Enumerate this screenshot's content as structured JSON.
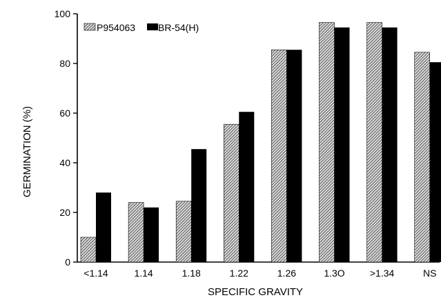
{
  "chart_data": {
    "type": "bar",
    "title": "",
    "xlabel": "SPECIFIC GRAVITY",
    "ylabel": "GERMINATION (%)",
    "ylim": [
      0,
      100
    ],
    "yticks": [
      0,
      20,
      40,
      60,
      80,
      100
    ],
    "categories": [
      "<1.14",
      "1.14",
      "1.18",
      "1.22",
      "1.26",
      "1.3O",
      ">1.34",
      "NS"
    ],
    "series": [
      {
        "name": "P954063",
        "values": [
          10,
          24,
          24.5,
          55.5,
          85.5,
          96.5,
          96.5,
          84.5
        ],
        "fill": "hatched"
      },
      {
        "name": "BR-54(H)",
        "values": [
          28,
          22,
          45.5,
          60.5,
          85.5,
          94.5,
          94.5,
          80.5
        ],
        "fill": "solid"
      }
    ],
    "legend_position": "top-left",
    "grid": false,
    "colors": {
      "axis": "#000000",
      "solid_bar": "#000000",
      "hatch_line": "#000000",
      "hatch_bg": "#d9d9d9"
    }
  }
}
